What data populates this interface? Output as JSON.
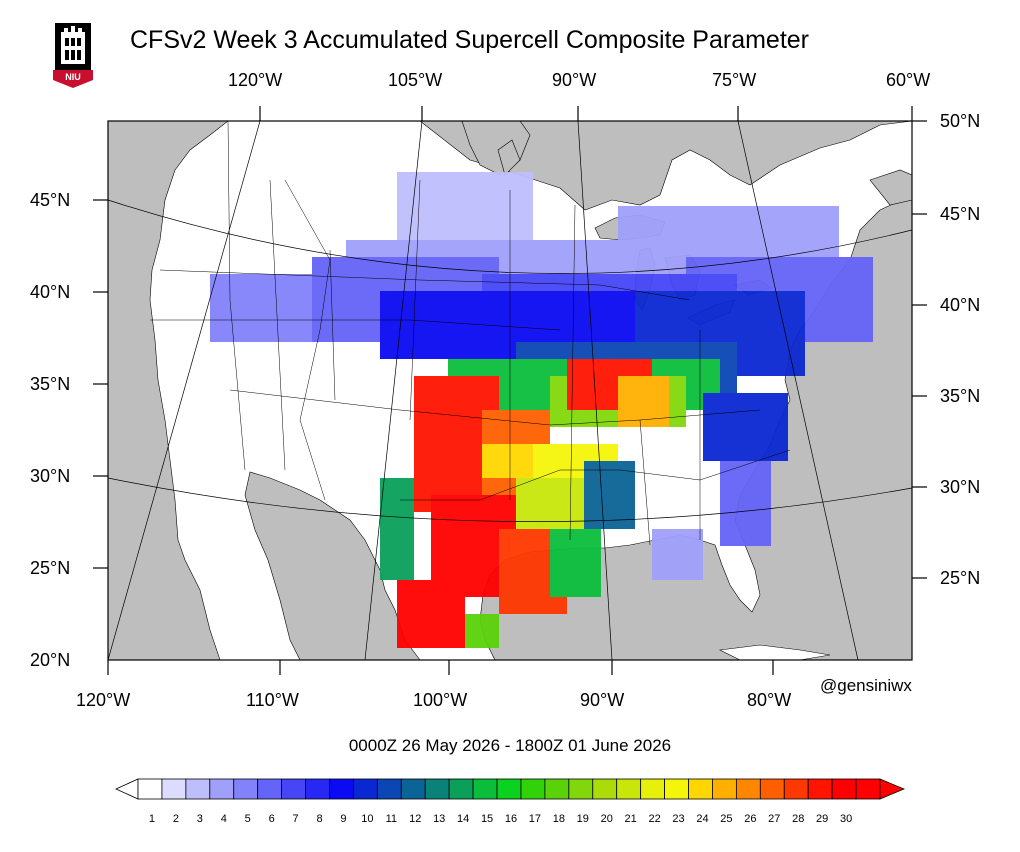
{
  "title": "CFSv2 Week 3 Accumulated Supercell Composite Parameter",
  "logo": {
    "text": "NIU",
    "colors": {
      "red": "#c8102e",
      "black": "#000000"
    }
  },
  "date_range": "0000Z 26  May  2026  - 1800Z 01  June  2026",
  "credit": "@gensiniwx",
  "top_lon_labels": [
    "120°W",
    "105°W",
    "90°W",
    "75°W",
    "60°W"
  ],
  "bottom_lon_labels": [
    "120°W",
    "110°W",
    "100°W",
    "90°W",
    "80°W"
  ],
  "left_lat_labels": [
    "45°N",
    "40°N",
    "35°N",
    "30°N",
    "25°N",
    "20°N"
  ],
  "right_lat_labels": [
    "50°N",
    "45°N",
    "40°N",
    "35°N",
    "30°N",
    "25°N"
  ],
  "colorbar": {
    "labels": [
      "1",
      "2",
      "3",
      "4",
      "5",
      "6",
      "7",
      "8",
      "9",
      "10",
      "11",
      "12",
      "13",
      "14",
      "15",
      "16",
      "17",
      "18",
      "19",
      "20",
      "21",
      "22",
      "23",
      "24",
      "25",
      "26",
      "27",
      "28",
      "29",
      "30"
    ],
    "colors": [
      "#ffffff",
      "#dcdcfe",
      "#bebefd",
      "#a0a0fb",
      "#8282fa",
      "#6464f8",
      "#4646f7",
      "#2828f5",
      "#0a0af3",
      "#0a28d2",
      "#0a46b4",
      "#0a6496",
      "#0a8278",
      "#0aa05a",
      "#0abe3c",
      "#0ad21e",
      "#32d20a",
      "#5ad20a",
      "#82d70a",
      "#aadc0a",
      "#c8e60a",
      "#e6f00a",
      "#f5f50a",
      "#ffd700",
      "#ffaf00",
      "#ff8700",
      "#ff5f00",
      "#ff3700",
      "#ff1400",
      "#ff0000",
      "#ff0000"
    ]
  },
  "map_colors": {
    "ocean": "#bebebe",
    "land": "#ffffff",
    "lines": "#000000"
  }
}
